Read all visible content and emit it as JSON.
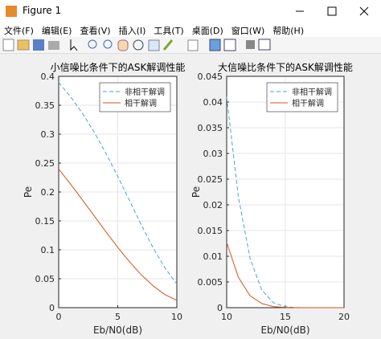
{
  "window": {
    "title": "Figure 1",
    "menu": [
      "文件(F)",
      "编辑(E)",
      "查看(V)",
      "插入(I)",
      "工具(T)",
      "桌面(D)",
      "窗口(W)",
      "帮助(H)"
    ]
  },
  "chart_data": [
    {
      "type": "line",
      "title": "小信噪比条件下的ASK解调性能",
      "x_label": "Eb/N0(dB)",
      "y_label": "Pe",
      "x": [
        0,
        1,
        2,
        3,
        4,
        5,
        6,
        7,
        8,
        9,
        10
      ],
      "series": [
        {
          "name": "非相干解调",
          "color": "#4d9fe0",
          "dash": true,
          "values": [
            0.3894,
            0.365,
            0.3365,
            0.3036,
            0.2669,
            0.2268,
            0.1848,
            0.1428,
            0.1032,
            0.0686,
            0.041
          ]
        },
        {
          "name": "相干解调",
          "color": "#d95319",
          "dash": false,
          "values": [
            0.2398,
            0.2138,
            0.1865,
            0.1589,
            0.1312,
            0.1043,
            0.0793,
            0.0567,
            0.0376,
            0.0225,
            0.0127
          ]
        }
      ],
      "xlim": [
        0,
        10
      ],
      "xticks": [
        0,
        5,
        10
      ],
      "ylim": [
        0,
        0.4
      ],
      "yticks": [
        0,
        0.05,
        0.1,
        0.15,
        0.2,
        0.25,
        0.3,
        0.35,
        0.4
      ],
      "grid": true,
      "legend": "top-right"
    },
    {
      "type": "line",
      "title": "大信噪比条件下的ASK解调性能",
      "x_label": "Eb/N0(dB)",
      "y_label": "Pe",
      "x": [
        10,
        11,
        12,
        13,
        14,
        15,
        16,
        17,
        18,
        19,
        20
      ],
      "series": [
        {
          "name": "非相干解调",
          "color": "#4d9fe0",
          "dash": true,
          "values": [
            0.041,
            0.0215,
            0.0095,
            0.0034,
            0.00094,
            0.00018,
            2e-05,
            0,
            0,
            0,
            0
          ]
        },
        {
          "name": "相干解调",
          "color": "#d95319",
          "dash": false,
          "values": [
            0.0127,
            0.0059,
            0.0023,
            0.0008,
            0.0002,
            5e-05,
            0,
            0,
            0,
            0,
            0
          ]
        }
      ],
      "xlim": [
        10,
        20
      ],
      "xticks": [
        10,
        15,
        20
      ],
      "ylim": [
        0,
        0.045
      ],
      "yticks": [
        0,
        0.005,
        0.01,
        0.015,
        0.02,
        0.025,
        0.03,
        0.035,
        0.04,
        0.045
      ],
      "grid": true,
      "legend": "top-right"
    }
  ]
}
